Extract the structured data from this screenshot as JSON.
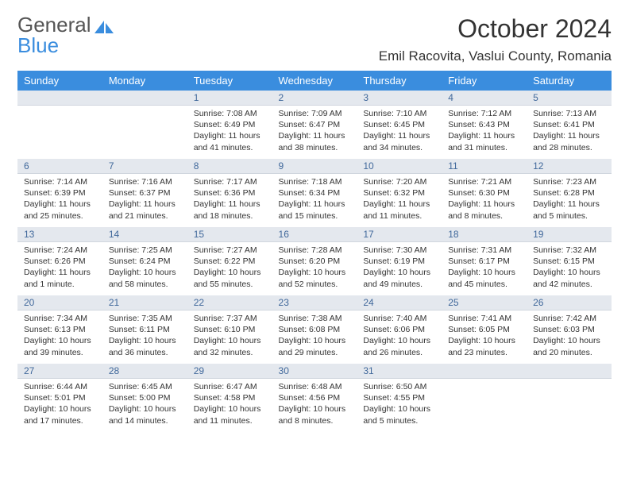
{
  "logo": {
    "word1": "General",
    "word2": "Blue"
  },
  "title": "October 2024",
  "location": "Emil Racovita, Vaslui County, Romania",
  "colors": {
    "header_bg": "#3a8dde",
    "header_fg": "#ffffff",
    "daynum_bg": "#e4e8ee",
    "daynum_fg": "#40689b",
    "body_fg": "#333333",
    "logo_blue": "#3a8dde"
  },
  "dayNames": [
    "Sunday",
    "Monday",
    "Tuesday",
    "Wednesday",
    "Thursday",
    "Friday",
    "Saturday"
  ],
  "weeks": [
    [
      null,
      null,
      {
        "n": "1",
        "sunrise": "7:08 AM",
        "sunset": "6:49 PM",
        "daylight": "11 hours and 41 minutes."
      },
      {
        "n": "2",
        "sunrise": "7:09 AM",
        "sunset": "6:47 PM",
        "daylight": "11 hours and 38 minutes."
      },
      {
        "n": "3",
        "sunrise": "7:10 AM",
        "sunset": "6:45 PM",
        "daylight": "11 hours and 34 minutes."
      },
      {
        "n": "4",
        "sunrise": "7:12 AM",
        "sunset": "6:43 PM",
        "daylight": "11 hours and 31 minutes."
      },
      {
        "n": "5",
        "sunrise": "7:13 AM",
        "sunset": "6:41 PM",
        "daylight": "11 hours and 28 minutes."
      }
    ],
    [
      {
        "n": "6",
        "sunrise": "7:14 AM",
        "sunset": "6:39 PM",
        "daylight": "11 hours and 25 minutes."
      },
      {
        "n": "7",
        "sunrise": "7:16 AM",
        "sunset": "6:37 PM",
        "daylight": "11 hours and 21 minutes."
      },
      {
        "n": "8",
        "sunrise": "7:17 AM",
        "sunset": "6:36 PM",
        "daylight": "11 hours and 18 minutes."
      },
      {
        "n": "9",
        "sunrise": "7:18 AM",
        "sunset": "6:34 PM",
        "daylight": "11 hours and 15 minutes."
      },
      {
        "n": "10",
        "sunrise": "7:20 AM",
        "sunset": "6:32 PM",
        "daylight": "11 hours and 11 minutes."
      },
      {
        "n": "11",
        "sunrise": "7:21 AM",
        "sunset": "6:30 PM",
        "daylight": "11 hours and 8 minutes."
      },
      {
        "n": "12",
        "sunrise": "7:23 AM",
        "sunset": "6:28 PM",
        "daylight": "11 hours and 5 minutes."
      }
    ],
    [
      {
        "n": "13",
        "sunrise": "7:24 AM",
        "sunset": "6:26 PM",
        "daylight": "11 hours and 1 minute."
      },
      {
        "n": "14",
        "sunrise": "7:25 AM",
        "sunset": "6:24 PM",
        "daylight": "10 hours and 58 minutes."
      },
      {
        "n": "15",
        "sunrise": "7:27 AM",
        "sunset": "6:22 PM",
        "daylight": "10 hours and 55 minutes."
      },
      {
        "n": "16",
        "sunrise": "7:28 AM",
        "sunset": "6:20 PM",
        "daylight": "10 hours and 52 minutes."
      },
      {
        "n": "17",
        "sunrise": "7:30 AM",
        "sunset": "6:19 PM",
        "daylight": "10 hours and 49 minutes."
      },
      {
        "n": "18",
        "sunrise": "7:31 AM",
        "sunset": "6:17 PM",
        "daylight": "10 hours and 45 minutes."
      },
      {
        "n": "19",
        "sunrise": "7:32 AM",
        "sunset": "6:15 PM",
        "daylight": "10 hours and 42 minutes."
      }
    ],
    [
      {
        "n": "20",
        "sunrise": "7:34 AM",
        "sunset": "6:13 PM",
        "daylight": "10 hours and 39 minutes."
      },
      {
        "n": "21",
        "sunrise": "7:35 AM",
        "sunset": "6:11 PM",
        "daylight": "10 hours and 36 minutes."
      },
      {
        "n": "22",
        "sunrise": "7:37 AM",
        "sunset": "6:10 PM",
        "daylight": "10 hours and 32 minutes."
      },
      {
        "n": "23",
        "sunrise": "7:38 AM",
        "sunset": "6:08 PM",
        "daylight": "10 hours and 29 minutes."
      },
      {
        "n": "24",
        "sunrise": "7:40 AM",
        "sunset": "6:06 PM",
        "daylight": "10 hours and 26 minutes."
      },
      {
        "n": "25",
        "sunrise": "7:41 AM",
        "sunset": "6:05 PM",
        "daylight": "10 hours and 23 minutes."
      },
      {
        "n": "26",
        "sunrise": "7:42 AM",
        "sunset": "6:03 PM",
        "daylight": "10 hours and 20 minutes."
      }
    ],
    [
      {
        "n": "27",
        "sunrise": "6:44 AM",
        "sunset": "5:01 PM",
        "daylight": "10 hours and 17 minutes."
      },
      {
        "n": "28",
        "sunrise": "6:45 AM",
        "sunset": "5:00 PM",
        "daylight": "10 hours and 14 minutes."
      },
      {
        "n": "29",
        "sunrise": "6:47 AM",
        "sunset": "4:58 PM",
        "daylight": "10 hours and 11 minutes."
      },
      {
        "n": "30",
        "sunrise": "6:48 AM",
        "sunset": "4:56 PM",
        "daylight": "10 hours and 8 minutes."
      },
      {
        "n": "31",
        "sunrise": "6:50 AM",
        "sunset": "4:55 PM",
        "daylight": "10 hours and 5 minutes."
      },
      null,
      null
    ]
  ],
  "labels": {
    "sunrise": "Sunrise:",
    "sunset": "Sunset:",
    "daylight": "Daylight:"
  }
}
